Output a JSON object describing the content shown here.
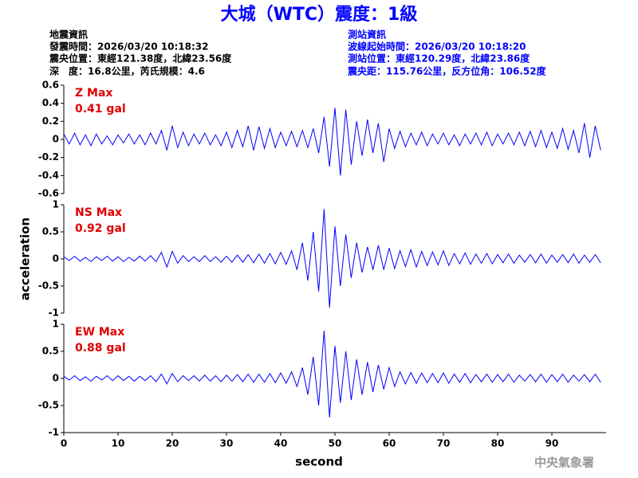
{
  "header": {
    "title": "大城（WTC）震度：1級",
    "info_left": [
      "地震資訊",
      "發震時間：2026/03/20 10:18:32",
      "震央位置：東經121.38度，北緯23.56度",
      "深　度：16.8公里，芮氏規模：4.6"
    ],
    "info_right": [
      "測站資訊",
      "波線起始時間：2026/03/20 10:18:20",
      "測站位置：東經120.29度，北緯23.86度",
      "震央距：115.76公里，反方位角：106.52度"
    ],
    "footer": "中央氣象署"
  },
  "chart_data": [
    {
      "type": "line",
      "annotations": [
        "Z Max",
        "0.41 gal"
      ],
      "color": "#0000ff",
      "xlim": [
        0,
        100
      ],
      "ylim": [
        -0.6,
        0.6
      ],
      "yticks": [
        -0.6,
        -0.4,
        -0.2,
        0,
        0.2,
        0.4,
        0.6
      ],
      "x": [
        0,
        1,
        2,
        3,
        4,
        5,
        6,
        7,
        8,
        9,
        10,
        11,
        12,
        13,
        14,
        15,
        16,
        17,
        18,
        19,
        20,
        21,
        22,
        23,
        24,
        25,
        26,
        27,
        28,
        29,
        30,
        31,
        32,
        33,
        34,
        35,
        36,
        37,
        38,
        39,
        40,
        41,
        42,
        43,
        44,
        45,
        46,
        47,
        48,
        49,
        50,
        51,
        52,
        53,
        54,
        55,
        56,
        57,
        58,
        59,
        60,
        61,
        62,
        63,
        64,
        65,
        66,
        67,
        68,
        69,
        70,
        71,
        72,
        73,
        74,
        75,
        76,
        77,
        78,
        79,
        80,
        81,
        82,
        83,
        84,
        85,
        86,
        87,
        88,
        89,
        90,
        91,
        92,
        93,
        94,
        95,
        96,
        97,
        98,
        99
      ],
      "values": [
        0.06,
        -0.05,
        0.07,
        -0.06,
        0.05,
        -0.07,
        0.06,
        -0.05,
        0.04,
        -0.06,
        0.05,
        -0.04,
        0.06,
        -0.05,
        0.05,
        -0.06,
        0.07,
        -0.05,
        0.1,
        -0.12,
        0.15,
        -0.09,
        0.08,
        -0.07,
        0.06,
        -0.05,
        0.07,
        -0.06,
        0.05,
        -0.07,
        0.08,
        -0.09,
        0.1,
        -0.08,
        0.15,
        -0.12,
        0.14,
        -0.1,
        0.12,
        -0.09,
        0.08,
        -0.07,
        0.09,
        -0.08,
        0.1,
        -0.09,
        0.12,
        -0.15,
        0.25,
        -0.3,
        0.35,
        -0.4,
        0.33,
        -0.28,
        0.2,
        -0.18,
        0.22,
        -0.15,
        0.18,
        -0.25,
        0.12,
        -0.1,
        0.09,
        -0.08,
        0.07,
        -0.06,
        0.08,
        -0.07,
        0.06,
        -0.05,
        0.07,
        -0.06,
        0.05,
        -0.07,
        0.06,
        -0.05,
        0.07,
        -0.06,
        0.08,
        -0.07,
        0.06,
        -0.05,
        0.07,
        -0.06,
        0.08,
        -0.07,
        0.09,
        -0.08,
        0.1,
        -0.09,
        0.08,
        -0.1,
        0.12,
        -0.11,
        0.1,
        -0.15,
        0.18,
        -0.2,
        0.15,
        -0.12
      ]
    },
    {
      "type": "line",
      "annotations": [
        "NS Max",
        "0.92 gal"
      ],
      "ylabel": "acceleration",
      "color": "#0000ff",
      "xlim": [
        0,
        100
      ],
      "ylim": [
        -1,
        1
      ],
      "yticks": [
        -1,
        -0.5,
        0,
        0.5,
        1
      ],
      "x": [
        0,
        1,
        2,
        3,
        4,
        5,
        6,
        7,
        8,
        9,
        10,
        11,
        12,
        13,
        14,
        15,
        16,
        17,
        18,
        19,
        20,
        21,
        22,
        23,
        24,
        25,
        26,
        27,
        28,
        29,
        30,
        31,
        32,
        33,
        34,
        35,
        36,
        37,
        38,
        39,
        40,
        41,
        42,
        43,
        44,
        45,
        46,
        47,
        48,
        49,
        50,
        51,
        52,
        53,
        54,
        55,
        56,
        57,
        58,
        59,
        60,
        61,
        62,
        63,
        64,
        65,
        66,
        67,
        68,
        69,
        70,
        71,
        72,
        73,
        74,
        75,
        76,
        77,
        78,
        79,
        80,
        81,
        82,
        83,
        84,
        85,
        86,
        87,
        88,
        89,
        90,
        91,
        92,
        93,
        94,
        95,
        96,
        97,
        98,
        99
      ],
      "values": [
        0.04,
        -0.03,
        0.05,
        -0.04,
        0.03,
        -0.05,
        0.04,
        -0.03,
        0.05,
        -0.04,
        0.04,
        -0.05,
        0.03,
        -0.04,
        0.05,
        -0.04,
        0.06,
        -0.05,
        0.12,
        -0.15,
        0.14,
        -0.08,
        0.06,
        -0.05,
        0.04,
        -0.05,
        0.06,
        -0.05,
        0.04,
        -0.06,
        0.05,
        -0.06,
        0.07,
        -0.06,
        0.08,
        -0.07,
        0.09,
        -0.08,
        0.1,
        -0.09,
        0.12,
        -0.1,
        0.15,
        -0.2,
        0.3,
        -0.4,
        0.5,
        -0.6,
        0.92,
        -0.9,
        0.6,
        -0.5,
        0.45,
        -0.35,
        0.3,
        -0.25,
        0.22,
        -0.2,
        0.25,
        -0.2,
        0.2,
        -0.18,
        0.15,
        -0.14,
        0.17,
        -0.15,
        0.14,
        -0.12,
        0.13,
        -0.11,
        0.15,
        -0.12,
        0.1,
        -0.09,
        0.11,
        -0.1,
        0.09,
        -0.08,
        0.1,
        -0.09,
        0.08,
        -0.07,
        0.09,
        -0.08,
        0.07,
        -0.06,
        0.08,
        -0.07,
        0.09,
        -0.08,
        0.07,
        -0.06,
        0.08,
        -0.07,
        0.09,
        -0.08,
        0.07,
        -0.06,
        0.08,
        -0.07
      ]
    },
    {
      "type": "line",
      "annotations": [
        "EW Max",
        "0.88 gal"
      ],
      "xlabel": "second",
      "color": "#0000ff",
      "xlim": [
        0,
        100
      ],
      "ylim": [
        -1,
        1
      ],
      "yticks": [
        -1,
        -0.5,
        0,
        0.5,
        1
      ],
      "xticks": [
        0,
        10,
        20,
        30,
        40,
        50,
        60,
        70,
        80,
        90
      ],
      "x": [
        0,
        1,
        2,
        3,
        4,
        5,
        6,
        7,
        8,
        9,
        10,
        11,
        12,
        13,
        14,
        15,
        16,
        17,
        18,
        19,
        20,
        21,
        22,
        23,
        24,
        25,
        26,
        27,
        28,
        29,
        30,
        31,
        32,
        33,
        34,
        35,
        36,
        37,
        38,
        39,
        40,
        41,
        42,
        43,
        44,
        45,
        46,
        47,
        48,
        49,
        50,
        51,
        52,
        53,
        54,
        55,
        56,
        57,
        58,
        59,
        60,
        61,
        62,
        63,
        64,
        65,
        66,
        67,
        68,
        69,
        70,
        71,
        72,
        73,
        74,
        75,
        76,
        77,
        78,
        79,
        80,
        81,
        82,
        83,
        84,
        85,
        86,
        87,
        88,
        89,
        90,
        91,
        92,
        93,
        94,
        95,
        96,
        97,
        98,
        99
      ],
      "values": [
        0.04,
        -0.03,
        0.05,
        -0.04,
        0.03,
        -0.05,
        0.04,
        -0.03,
        0.05,
        -0.04,
        0.05,
        -0.04,
        0.04,
        -0.05,
        0.04,
        -0.04,
        0.05,
        -0.06,
        0.08,
        -0.1,
        0.09,
        -0.06,
        0.05,
        -0.04,
        0.05,
        -0.05,
        0.06,
        -0.05,
        0.05,
        -0.06,
        0.06,
        -0.05,
        0.07,
        -0.06,
        0.08,
        -0.07,
        0.08,
        -0.07,
        0.09,
        -0.08,
        0.1,
        -0.09,
        0.12,
        -0.15,
        0.2,
        -0.3,
        0.4,
        -0.5,
        0.88,
        -0.72,
        0.6,
        -0.45,
        0.5,
        -0.4,
        0.35,
        -0.3,
        0.3,
        -0.25,
        0.25,
        -0.2,
        0.2,
        -0.15,
        0.12,
        -0.1,
        0.11,
        -0.09,
        0.1,
        -0.08,
        0.09,
        -0.08,
        0.1,
        -0.09,
        0.08,
        -0.07,
        0.09,
        -0.08,
        0.07,
        -0.06,
        0.08,
        -0.07,
        0.07,
        -0.06,
        0.08,
        -0.07,
        0.06,
        -0.05,
        0.07,
        -0.06,
        0.08,
        -0.07,
        0.07,
        -0.06,
        0.08,
        -0.07,
        0.06,
        -0.05,
        0.07,
        -0.06,
        0.08,
        -0.07
      ]
    }
  ]
}
